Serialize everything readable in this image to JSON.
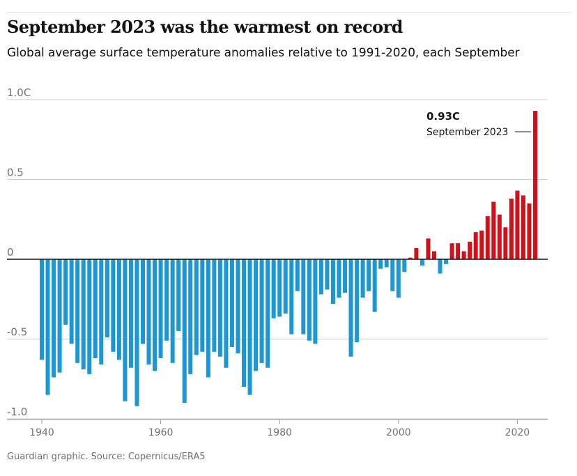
{
  "header": {
    "title": "September 2023 was the warmest on record",
    "subtitle": "Global average surface temperature anomalies relative to 1991-2020, each September"
  },
  "footer": {
    "source": "Guardian graphic. Source: Copernicus/ERA5"
  },
  "colors": {
    "negative": "#1b97d6",
    "positive": "#d1111a",
    "grid": "#cccccc",
    "axis": "#121212"
  },
  "chart_data": {
    "type": "bar",
    "title": "September 2023 was the warmest on record",
    "subtitle": "Global average surface temperature anomalies relative to 1991-2020, each September",
    "ylim": [
      -1.0,
      1.0
    ],
    "xlim": [
      1940,
      2023
    ],
    "y_ticks": [
      {
        "value": 1.0,
        "label": "1.0C"
      },
      {
        "value": 0.5,
        "label": "0.5"
      },
      {
        "value": 0,
        "label": "0"
      },
      {
        "value": -0.5,
        "label": "-0.5"
      },
      {
        "value": -1.0,
        "label": "-1.0"
      }
    ],
    "x_ticks": [
      {
        "value": 1940,
        "label": "1940"
      },
      {
        "value": 1960,
        "label": "1960"
      },
      {
        "value": 1980,
        "label": "1980"
      },
      {
        "value": 2000,
        "label": "2000"
      },
      {
        "value": 2020,
        "label": "2020"
      }
    ],
    "grid": true,
    "series": [
      {
        "x": [
          1940,
          1941,
          1942,
          1943,
          1944,
          1945,
          1946,
          1947,
          1948,
          1949,
          1950,
          1951,
          1952,
          1953,
          1954,
          1955,
          1956,
          1957,
          1958,
          1959,
          1960,
          1961,
          1962,
          1963,
          1964,
          1965,
          1966,
          1967,
          1968,
          1969,
          1970,
          1971,
          1972,
          1973,
          1974,
          1975,
          1976,
          1977,
          1978,
          1979,
          1980,
          1981,
          1982,
          1983,
          1984,
          1985,
          1986,
          1987,
          1988,
          1989,
          1990,
          1991,
          1992,
          1993,
          1994,
          1995,
          1996,
          1997,
          1998,
          1999,
          2000,
          2001,
          2002,
          2003,
          2004,
          2005,
          2006,
          2007,
          2008,
          2009,
          2010,
          2011,
          2012,
          2013,
          2014,
          2015,
          2016,
          2017,
          2018,
          2019,
          2020,
          2021,
          2022,
          2023
        ],
        "values": [
          -0.63,
          -0.85,
          -0.74,
          -0.71,
          -0.41,
          -0.53,
          -0.65,
          -0.69,
          -0.72,
          -0.62,
          -0.66,
          -0.49,
          -0.58,
          -0.63,
          -0.89,
          -0.68,
          -0.92,
          -0.53,
          -0.66,
          -0.7,
          -0.62,
          -0.51,
          -0.65,
          -0.45,
          -0.9,
          -0.72,
          -0.6,
          -0.58,
          -0.74,
          -0.58,
          -0.61,
          -0.68,
          -0.55,
          -0.59,
          -0.8,
          -0.85,
          -0.7,
          -0.65,
          -0.68,
          -0.37,
          -0.36,
          -0.34,
          -0.47,
          -0.2,
          -0.47,
          -0.51,
          -0.53,
          -0.22,
          -0.19,
          -0.28,
          -0.24,
          -0.21,
          -0.61,
          -0.52,
          -0.24,
          -0.2,
          -0.33,
          -0.06,
          -0.05,
          -0.2,
          -0.24,
          -0.08,
          0.01,
          0.07,
          -0.04,
          0.13,
          0.05,
          -0.09,
          -0.03,
          0.1,
          0.1,
          0.05,
          0.11,
          0.17,
          0.18,
          0.27,
          0.36,
          0.28,
          0.2,
          0.38,
          0.43,
          0.4,
          0.35,
          0.93
        ]
      }
    ],
    "annotation": {
      "value_label": "0.93C",
      "text": "September 2023",
      "x": 2023,
      "y": 0.93
    }
  }
}
